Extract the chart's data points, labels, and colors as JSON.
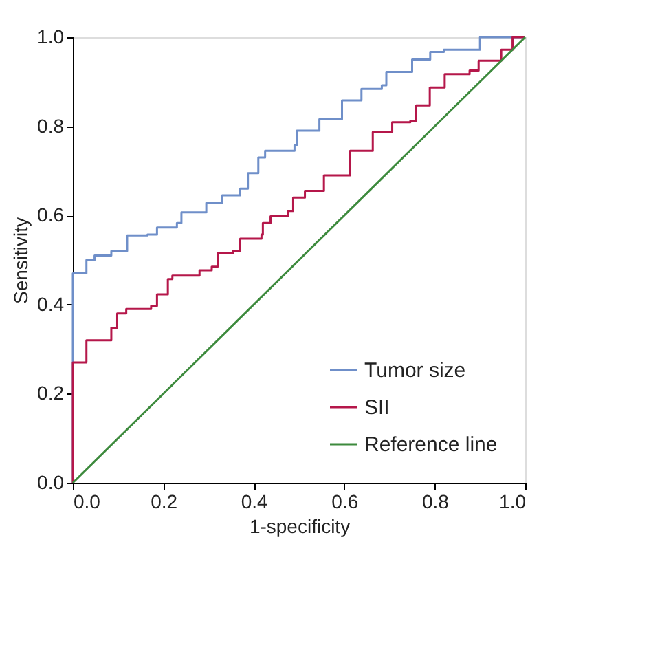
{
  "chart_data": {
    "type": "step",
    "xlabel": "1-specificity",
    "ylabel": "Sensitivity",
    "xlim": [
      0,
      1
    ],
    "ylim": [
      0,
      1
    ],
    "xticks": [
      {
        "value": 0,
        "label": "0.0"
      },
      {
        "value": 0.2,
        "label": "0.2"
      },
      {
        "value": 0.4,
        "label": "0.4"
      },
      {
        "value": 0.6,
        "label": "0.6"
      },
      {
        "value": 0.8,
        "label": "0.8"
      },
      {
        "value": 1,
        "label": "1.0"
      }
    ],
    "yticks": [
      {
        "value": 0,
        "label": "0.0"
      },
      {
        "value": 0.2,
        "label": "0.2"
      },
      {
        "value": 0.4,
        "label": "0.4"
      },
      {
        "value": 0.6,
        "label": "0.6"
      },
      {
        "value": 0.8,
        "label": "0.8"
      },
      {
        "value": 1,
        "label": "1.0"
      }
    ],
    "grid": false,
    "legend": "bottom right",
    "line_style": "solid",
    "marker": "none",
    "series": [
      {
        "name": "Tumor size",
        "color": "#6f8fc9",
        "x": [
          0,
          0,
          0.03,
          0.048,
          0.085,
          0.12,
          0.165,
          0.186,
          0.23,
          0.24,
          0.295,
          0.33,
          0.37,
          0.387,
          0.41,
          0.425,
          0.49,
          0.495,
          0.545,
          0.595,
          0.638,
          0.683,
          0.693,
          0.75,
          0.79,
          0.82,
          0.88,
          0.9,
          1
        ],
        "values": [
          0,
          0.47,
          0.5,
          0.51,
          0.52,
          0.555,
          0.557,
          0.573,
          0.583,
          0.607,
          0.628,
          0.645,
          0.66,
          0.695,
          0.73,
          0.745,
          0.758,
          0.79,
          0.816,
          0.858,
          0.884,
          0.892,
          0.922,
          0.95,
          0.967,
          0.972,
          0.972,
          1,
          1
        ]
      },
      {
        "name": "SII",
        "color": "#b5174a",
        "x": [
          0,
          0,
          0.023,
          0.03,
          0.07,
          0.085,
          0.098,
          0.118,
          0.173,
          0.186,
          0.21,
          0.22,
          0.274,
          0.28,
          0.307,
          0.32,
          0.354,
          0.37,
          0.417,
          0.42,
          0.437,
          0.475,
          0.487,
          0.513,
          0.555,
          0.613,
          0.643,
          0.663,
          0.706,
          0.746,
          0.759,
          0.789,
          0.822,
          0.877,
          0.897,
          0.947,
          0.972,
          1
        ],
        "values": [
          0,
          0.27,
          0.27,
          0.32,
          0.32,
          0.348,
          0.38,
          0.39,
          0.397,
          0.423,
          0.457,
          0.465,
          0.465,
          0.477,
          0.485,
          0.515,
          0.52,
          0.548,
          0.557,
          0.583,
          0.598,
          0.61,
          0.64,
          0.655,
          0.69,
          0.745,
          0.745,
          0.787,
          0.809,
          0.812,
          0.847,
          0.887,
          0.917,
          0.925,
          0.947,
          0.972,
          1,
          1
        ]
      },
      {
        "name": "Reference line",
        "type": "line",
        "color": "#3d8a3d",
        "x": [
          0,
          1
        ],
        "values": [
          0,
          1
        ]
      }
    ]
  }
}
